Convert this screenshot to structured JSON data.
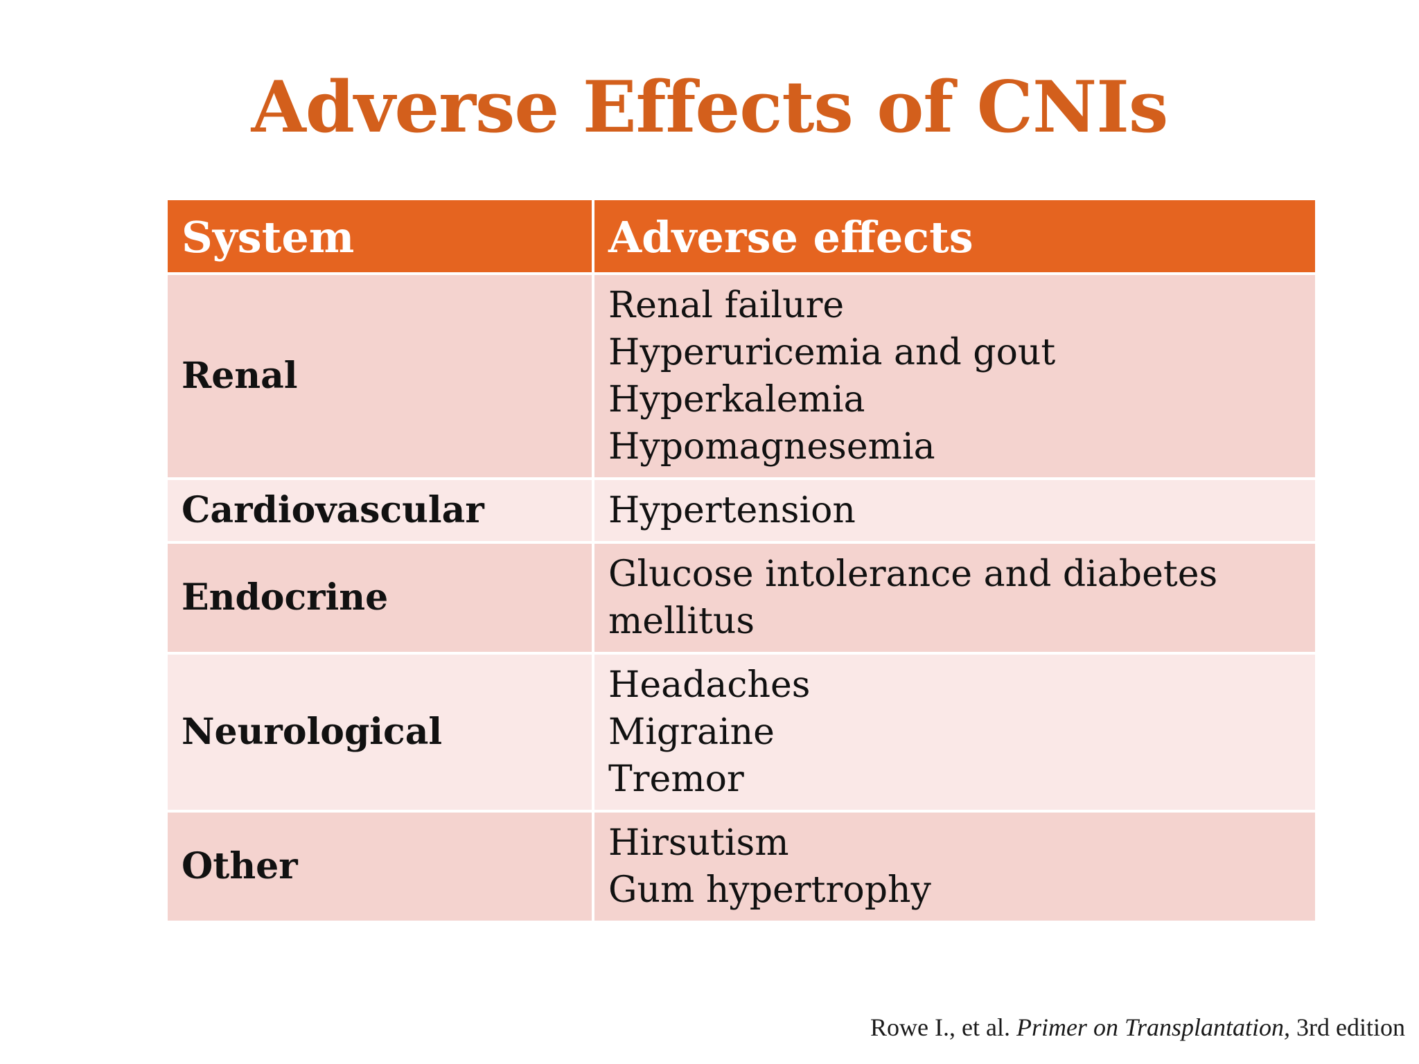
{
  "title": "Adverse Effects of CNIs",
  "table": {
    "headers": [
      "System",
      "Adverse effects"
    ],
    "rows": [
      {
        "system": "Renal",
        "effects": [
          "Renal failure",
          "Hyperuricemia and gout",
          "Hyperkalemia",
          "Hypomagnesemia"
        ]
      },
      {
        "system": "Cardiovascular",
        "effects": [
          "Hypertension"
        ]
      },
      {
        "system": "Endocrine",
        "effects": [
          "Glucose intolerance and diabetes mellitus"
        ]
      },
      {
        "system": "Neurological",
        "effects": [
          "Headaches",
          "Migraine",
          "Tremor"
        ]
      },
      {
        "system": "Other",
        "effects": [
          "Hirsutism",
          "Gum hypertrophy"
        ]
      }
    ]
  },
  "colors": {
    "title": "#d35f1c",
    "header_bg": "#e56420",
    "row_dark": "#f4d3cf",
    "row_light": "#fae8e7"
  },
  "citation": {
    "authors": "Rowe I., et al. ",
    "book": "Primer on Transplantation,",
    "edition": " 3rd edition"
  }
}
